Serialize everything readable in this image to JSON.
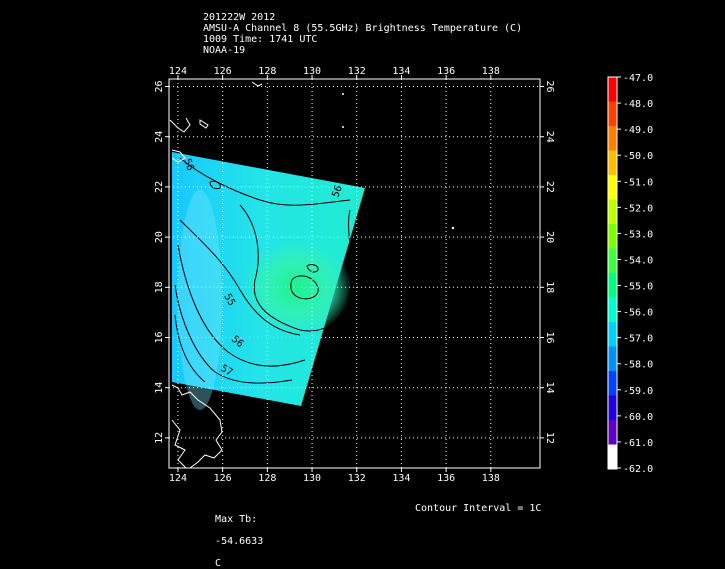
{
  "title_lines": [
    "201222W 2012",
    "AMSU-A Channel 8 (55.5GHz) Brightness Temperature (C)",
    "1009 Time: 1741 UTC",
    "NOAA-19"
  ],
  "map": {
    "lon_ticks": [
      "124",
      "126",
      "128",
      "130",
      "132",
      "134",
      "136",
      "138"
    ],
    "lat_ticks": [
      "12",
      "14",
      "16",
      "18",
      "20",
      "22",
      "24",
      "26"
    ],
    "lon_range": [
      123.6,
      140.2
    ],
    "lat_range": [
      10.8,
      26.3
    ],
    "grid": "dotted",
    "coastline_color": "#ffffff",
    "contour_color": "#000000",
    "contour_labels": [
      "56",
      "55",
      "56",
      "57",
      "56"
    ]
  },
  "colorbar": {
    "labels": [
      "-47.0",
      "-48.0",
      "-49.0",
      "-50.0",
      "-51.0",
      "-52.0",
      "-53.0",
      "-54.0",
      "-55.0",
      "-56.0",
      "-57.0",
      "-58.0",
      "-59.0",
      "-60.0",
      "-61.0",
      "-62.0"
    ],
    "colors": [
      "#ff0000",
      "#ff4000",
      "#ff8000",
      "#ffbf00",
      "#ffff00",
      "#c0ff00",
      "#80ff00",
      "#40ff40",
      "#00ff80",
      "#00ffd0",
      "#00d0ff",
      "#0090ff",
      "#0040ff",
      "#2000e0",
      "#6000c0",
      "#ffffff"
    ]
  },
  "footer": {
    "max_tb_label": "Max Tb:",
    "max_tb_value": "-54.6633",
    "max_tb_unit": "C",
    "contour_interval": "Contour Interval = 1C"
  }
}
